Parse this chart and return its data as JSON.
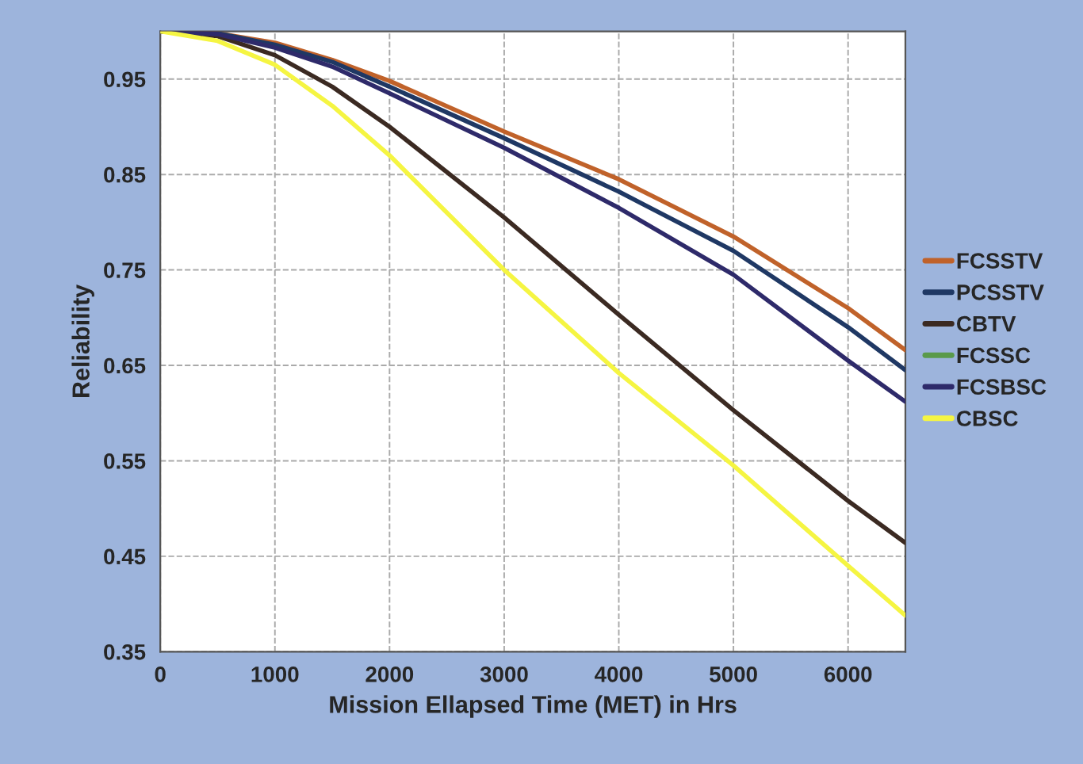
{
  "chart_data": {
    "type": "line",
    "xlabel": "Mission Ellapsed Time (MET) in Hrs",
    "ylabel": "Reliability",
    "x": [
      0,
      500,
      1000,
      1500,
      2000,
      3000,
      4000,
      5000,
      6000,
      6500
    ],
    "series": [
      {
        "name": "FCSSTV",
        "color": "#c0622a",
        "values": [
          1.0,
          0.998,
          0.988,
          0.97,
          0.948,
          0.895,
          0.845,
          0.785,
          0.71,
          0.666
        ]
      },
      {
        "name": "PCSSTV",
        "color": "#1f3864",
        "values": [
          1.0,
          0.998,
          0.986,
          0.968,
          0.942,
          0.888,
          0.832,
          0.77,
          0.69,
          0.645
        ]
      },
      {
        "name": "CBTV",
        "color": "#3b2a22",
        "values": [
          1.0,
          0.995,
          0.975,
          0.942,
          0.9,
          0.805,
          0.703,
          0.603,
          0.508,
          0.464
        ]
      },
      {
        "name": "FCSSC",
        "color": "#5a9a4a",
        "values": [
          null,
          null,
          null,
          null,
          null,
          null,
          null,
          null,
          null,
          null
        ]
      },
      {
        "name": "FCSBSC",
        "color": "#2e2a6a",
        "values": [
          1.0,
          0.997,
          0.983,
          0.963,
          0.935,
          0.878,
          0.815,
          0.745,
          0.655,
          0.612
        ]
      },
      {
        "name": "CBSC",
        "color": "#f5f542",
        "values": [
          1.0,
          0.99,
          0.965,
          0.922,
          0.87,
          0.75,
          0.642,
          0.545,
          0.44,
          0.388
        ]
      }
    ],
    "xlim": [
      0,
      6500
    ],
    "xticks": [
      0,
      1000,
      2000,
      3000,
      4000,
      5000,
      6000
    ],
    "ylim": [
      0.35,
      1.0
    ],
    "yticks": [
      0.35,
      0.45,
      0.55,
      0.65,
      0.75,
      0.85,
      0.95
    ],
    "grid": true,
    "legend": "right",
    "marker": "none",
    "line_style": "solid"
  }
}
